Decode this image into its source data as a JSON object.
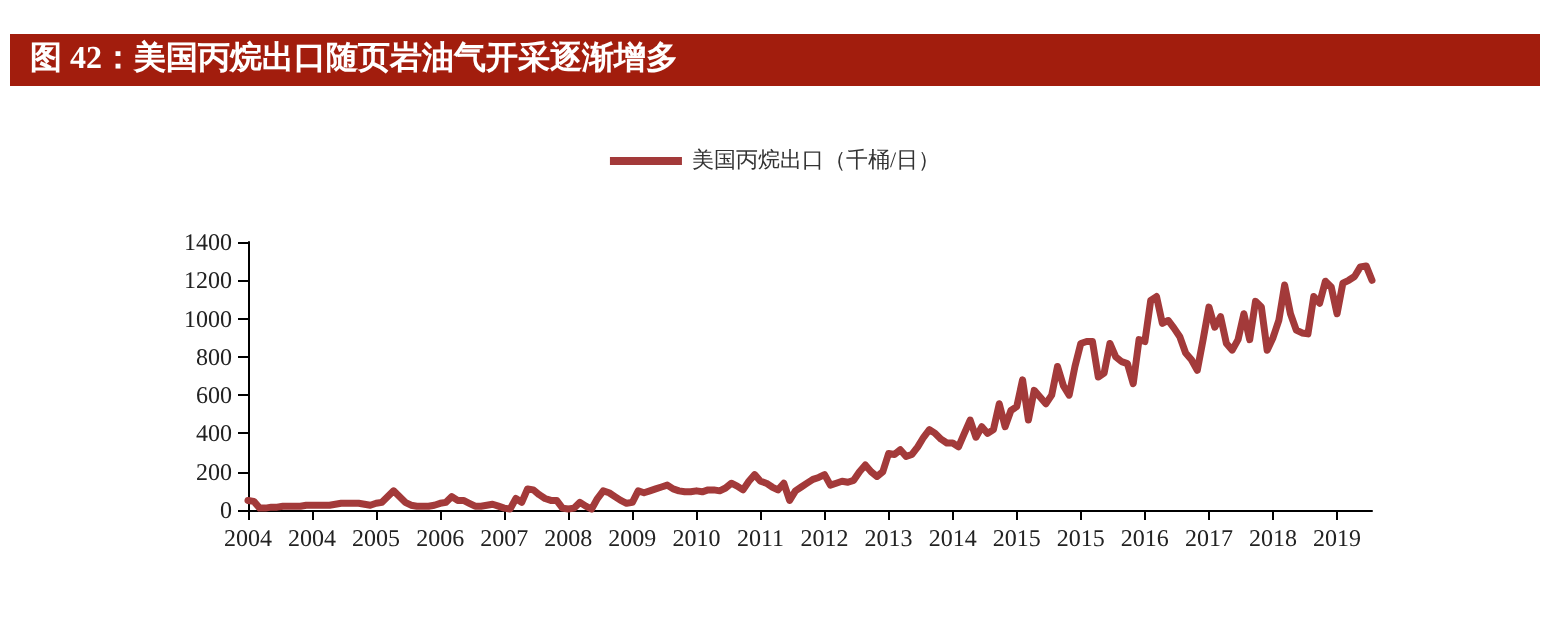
{
  "chart_data": {
    "type": "line",
    "title": "图 42：美国丙烷出口随页岩油气开采逐渐增多",
    "categories": [
      "2004",
      null,
      null,
      null,
      null,
      null,
      null,
      null,
      null,
      null,
      null,
      "2004",
      null,
      null,
      null,
      null,
      null,
      null,
      null,
      null,
      null,
      null,
      "2005",
      null,
      null,
      null,
      null,
      null,
      null,
      null,
      null,
      null,
      null,
      "2006",
      null,
      null,
      null,
      null,
      null,
      null,
      null,
      null,
      null,
      null,
      "2007",
      null,
      null,
      null,
      null,
      null,
      null,
      null,
      null,
      null,
      null,
      "2008",
      null,
      null,
      null,
      null,
      null,
      null,
      null,
      null,
      null,
      null,
      "2009",
      null,
      null,
      null,
      null,
      null,
      null,
      null,
      null,
      null,
      null,
      "2010",
      null,
      null,
      null,
      null,
      null,
      null,
      null,
      null,
      null,
      null,
      "2011",
      null,
      null,
      null,
      null,
      null,
      null,
      null,
      null,
      null,
      null,
      "2012",
      null,
      null,
      null,
      null,
      null,
      null,
      null,
      null,
      null,
      null,
      "2013",
      null,
      null,
      null,
      null,
      null,
      null,
      null,
      null,
      null,
      null,
      "2014",
      null,
      null,
      null,
      null,
      null,
      null,
      null,
      null,
      null,
      null,
      "2015",
      null,
      null,
      null,
      null,
      null,
      null,
      null,
      null,
      null,
      null,
      "2015",
      null,
      null,
      null,
      null,
      null,
      null,
      null,
      null,
      null,
      null,
      "2016",
      null,
      null,
      null,
      null,
      null,
      null,
      null,
      null,
      null,
      null,
      "2017",
      null,
      null,
      null,
      null,
      null,
      null,
      null,
      null,
      null,
      null,
      "2018",
      null,
      null,
      null,
      null,
      null,
      null,
      null,
      null,
      null,
      null,
      "2019",
      null,
      null,
      null,
      null,
      null,
      null
    ],
    "series": [
      {
        "name": "美国丙烷出口（千桶/日）",
        "color": "#a33a3a",
        "values": [
          50,
          45,
          10,
          10,
          15,
          15,
          20,
          20,
          20,
          20,
          25,
          25,
          25,
          25,
          25,
          30,
          35,
          35,
          35,
          35,
          30,
          25,
          35,
          40,
          70,
          100,
          70,
          40,
          25,
          20,
          20,
          20,
          25,
          35,
          40,
          70,
          50,
          50,
          35,
          20,
          20,
          25,
          30,
          20,
          10,
          5,
          60,
          40,
          110,
          105,
          80,
          60,
          50,
          50,
          10,
          5,
          10,
          40,
          20,
          5,
          60,
          100,
          90,
          70,
          50,
          35,
          40,
          100,
          90,
          100,
          110,
          120,
          130,
          110,
          100,
          95,
          95,
          100,
          95,
          105,
          105,
          100,
          115,
          140,
          125,
          105,
          150,
          185,
          150,
          140,
          120,
          105,
          140,
          50,
          100,
          120,
          140,
          160,
          170,
          185,
          130,
          140,
          150,
          145,
          155,
          200,
          235,
          200,
          175,
          200,
          295,
          290,
          315,
          280,
          290,
          330,
          380,
          420,
          400,
          370,
          350,
          350,
          330,
          400,
          470,
          380,
          435,
          400,
          420,
          555,
          435,
          520,
          540,
          680,
          470,
          625,
          590,
          555,
          600,
          750,
          650,
          600,
          750,
          870,
          880,
          880,
          695,
          715,
          870,
          800,
          775,
          765,
          660,
          890,
          880,
          1095,
          1115,
          975,
          990,
          950,
          905,
          820,
          785,
          730,
          890,
          1060,
          955,
          1010,
          870,
          835,
          890,
          1025,
          890,
          1090,
          1060,
          835,
          900,
          990,
          1175,
          1025,
          940,
          925,
          920,
          1115,
          1080,
          1195,
          1165,
          1025,
          1185,
          1200,
          1220,
          1270,
          1275,
          1200
        ]
      }
    ],
    "ylim": [
      0,
      1400
    ],
    "yticks": [
      0,
      200,
      400,
      600,
      800,
      1000,
      1200,
      1400
    ],
    "grid": false,
    "legend": "top",
    "marker": "none",
    "line_style": "solid"
  }
}
